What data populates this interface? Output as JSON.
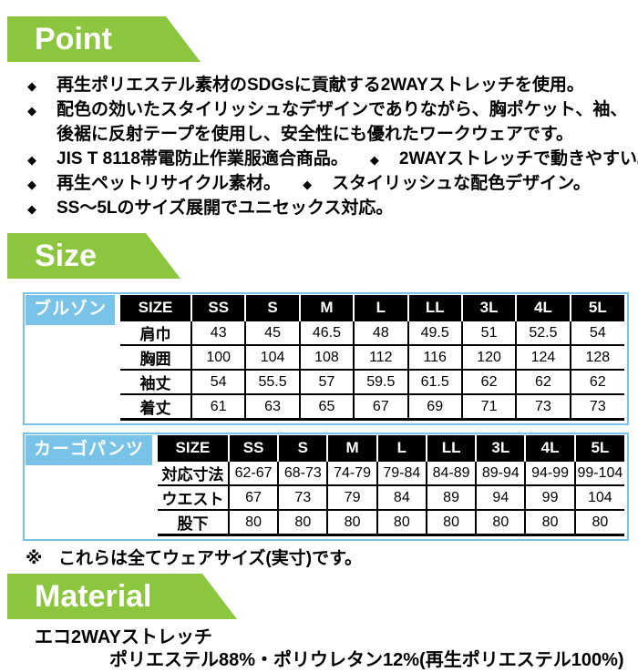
{
  "colors": {
    "accent_green": "#8CC63F",
    "accent_blue": "#79C3E8",
    "table_header_bg": "#000000",
    "text": "#000000"
  },
  "banners": {
    "point": "Point",
    "size": "Size",
    "material": "Material"
  },
  "icons": {
    "diamond_bullet": "◆",
    "note_mark": "※"
  },
  "point_section": {
    "lines": [
      {
        "segments": [
          {
            "bullet": true,
            "text": "再生ポリエステル素材のSDGsに貢献する2WAYストレッチを使用。"
          }
        ]
      },
      {
        "segments": [
          {
            "bullet": true,
            "text": "配色の効いたスタイリッシュなデザインでありながら、胸ポケット、袖、"
          }
        ]
      },
      {
        "segments": [
          {
            "bullet": false,
            "text": "後裾に反射テープを使用し、安全性にも優れたワークウェアです。"
          }
        ]
      },
      {
        "segments": [
          {
            "bullet": true,
            "text": "JIS T 8118帯電防止作業服適合商品。"
          },
          {
            "bullet": true,
            "text": "2WAYストレッチで動きやすい。"
          }
        ]
      },
      {
        "segments": [
          {
            "bullet": true,
            "text": "再生ペットリサイクル素材。"
          },
          {
            "bullet": true,
            "text": "スタイリッシュな配色デザイン。"
          }
        ]
      },
      {
        "segments": [
          {
            "bullet": true,
            "text": "SS～5Lのサイズ展開でユニセックス対応。"
          }
        ]
      }
    ]
  },
  "size_section": {
    "tables": [
      {
        "label": "ブルゾン",
        "columns": [
          "SIZE",
          "SS",
          "S",
          "M",
          "L",
          "LL",
          "3L",
          "4L",
          "5L"
        ],
        "rows": [
          {
            "name": "肩巾",
            "values": [
              "43",
              "45",
              "46.5",
              "48",
              "49.5",
              "51",
              "52.5",
              "54"
            ]
          },
          {
            "name": "胸囲",
            "values": [
              "100",
              "104",
              "108",
              "112",
              "116",
              "120",
              "124",
              "128"
            ]
          },
          {
            "name": "袖丈",
            "values": [
              "54",
              "55.5",
              "57",
              "59.5",
              "61.5",
              "62",
              "62",
              "62"
            ]
          },
          {
            "name": "着丈",
            "values": [
              "61",
              "63",
              "65",
              "67",
              "69",
              "71",
              "73",
              "73"
            ]
          }
        ]
      },
      {
        "label": "カーゴパンツ",
        "columns": [
          "SIZE",
          "SS",
          "S",
          "M",
          "L",
          "LL",
          "3L",
          "4L",
          "5L"
        ],
        "rows": [
          {
            "name": "対応寸法",
            "values": [
              "62-67",
              "68-73",
              "74-79",
              "79-84",
              "84-89",
              "89-94",
              "94-99",
              "99-104"
            ]
          },
          {
            "name": "ウエスト",
            "values": [
              "67",
              "73",
              "79",
              "84",
              "89",
              "94",
              "99",
              "104"
            ]
          },
          {
            "name": "股下",
            "values": [
              "80",
              "80",
              "80",
              "80",
              "80",
              "80",
              "80",
              "80"
            ]
          }
        ]
      }
    ],
    "note": "これらは全てウェアサイズ(実寸)です。"
  },
  "material_section": {
    "lines": [
      "エコ2WAYストレッチ",
      "ポリエステル88%・ポリウレタン12%(再生ポリエステル100%)"
    ]
  }
}
